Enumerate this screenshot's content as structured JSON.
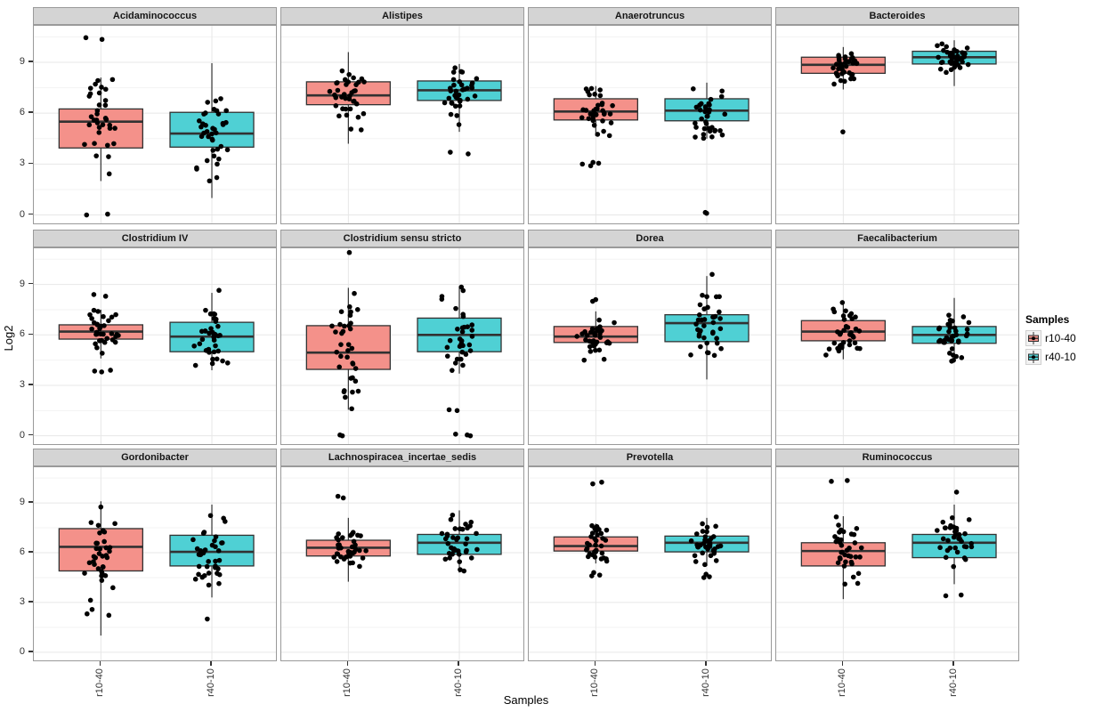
{
  "figure_title": "",
  "chart_data": {
    "type": "boxplot",
    "facet_grid": {
      "rows": 3,
      "cols": 4
    },
    "title": "",
    "xlabel": "Samples",
    "ylabel": "Log2",
    "categories": [
      "r10-40",
      "r40-10"
    ],
    "y_ticks": [
      "0",
      "3",
      "6",
      "9"
    ],
    "y_domain": [
      -0.6,
      11.15
    ],
    "grid": "on",
    "legend_position": "right",
    "points_per_group": 38,
    "colors": {
      "r10-40_fill": "#F4918A",
      "r40-10_fill": "#4FD0D4",
      "box_stroke": "#323232",
      "point": "#000000",
      "strip_bg": "#D4D4D4",
      "panel_border": "#9A9A9A",
      "grid_major": "#E7E7E7",
      "grid_minor": "#F3F3F3"
    },
    "legend": {
      "title": "Samples",
      "items": [
        {
          "label": "r10-40",
          "color": "#F4918A"
        },
        {
          "label": "r40-10",
          "color": "#4FD0D4"
        }
      ]
    },
    "facets": [
      {
        "name": "Acidaminococcus",
        "boxes": [
          {
            "group": "r10-40",
            "low": 2.0,
            "q1": 3.95,
            "median": 5.5,
            "q3": 6.25,
            "high": 8.1,
            "outliers": [
              10.35,
              10.45,
              0.0,
              0.05
            ]
          },
          {
            "group": "r40-10",
            "low": 1.0,
            "q1": 4.0,
            "median": 4.8,
            "q3": 6.05,
            "high": 8.95,
            "outliers": []
          }
        ]
      },
      {
        "name": "Alistipes",
        "boxes": [
          {
            "group": "r10-40",
            "low": 4.2,
            "q1": 6.5,
            "median": 7.05,
            "q3": 7.85,
            "high": 9.6,
            "outliers": []
          },
          {
            "group": "r40-10",
            "low": 4.9,
            "q1": 6.75,
            "median": 7.35,
            "q3": 7.9,
            "high": 8.9,
            "outliers": [
              3.6,
              3.7
            ]
          }
        ]
      },
      {
        "name": "Anaerotruncus",
        "boxes": [
          {
            "group": "r10-40",
            "low": 4.65,
            "q1": 5.6,
            "median": 6.1,
            "q3": 6.85,
            "high": 7.6,
            "outliers": [
              2.9,
              3.0,
              3.05,
              3.1
            ]
          },
          {
            "group": "r40-10",
            "low": 4.5,
            "q1": 5.55,
            "median": 6.15,
            "q3": 6.85,
            "high": 7.8,
            "outliers": [
              0.1,
              0.15
            ]
          }
        ]
      },
      {
        "name": "Bacteroides",
        "boxes": [
          {
            "group": "r10-40",
            "low": 7.4,
            "q1": 8.35,
            "median": 8.85,
            "q3": 9.3,
            "high": 9.9,
            "outliers": [
              4.9
            ]
          },
          {
            "group": "r40-10",
            "low": 7.6,
            "q1": 8.9,
            "median": 9.3,
            "q3": 9.65,
            "high": 10.3,
            "outliers": []
          }
        ]
      },
      {
        "name": "Clostridium IV",
        "boxes": [
          {
            "group": "r10-40",
            "low": 4.6,
            "q1": 5.75,
            "median": 6.2,
            "q3": 6.6,
            "high": 7.5,
            "outliers": [
              3.8,
              3.85,
              3.9,
              8.3,
              8.4
            ]
          },
          {
            "group": "r40-10",
            "low": 3.9,
            "q1": 5.0,
            "median": 5.9,
            "q3": 6.75,
            "high": 8.5,
            "outliers": [
              8.65
            ]
          }
        ]
      },
      {
        "name": "Clostridium sensu stricto",
        "boxes": [
          {
            "group": "r10-40",
            "low": 1.55,
            "q1": 3.95,
            "median": 4.95,
            "q3": 6.55,
            "high": 8.8,
            "outliers": [
              10.9,
              0.0,
              0.05
            ]
          },
          {
            "group": "r40-10",
            "low": 3.7,
            "q1": 5.0,
            "median": 6.0,
            "q3": 7.0,
            "high": 8.9,
            "outliers": [
              0.0,
              0.05,
              0.1,
              1.5,
              1.55
            ]
          }
        ]
      },
      {
        "name": "Dorea",
        "boxes": [
          {
            "group": "r10-40",
            "low": 4.95,
            "q1": 5.55,
            "median": 5.9,
            "q3": 6.5,
            "high": 7.4,
            "outliers": [
              4.5,
              4.55,
              8.0,
              8.1
            ]
          },
          {
            "group": "r40-10",
            "low": 3.35,
            "q1": 5.6,
            "median": 6.7,
            "q3": 7.2,
            "high": 9.5,
            "outliers": [
              9.6
            ]
          }
        ]
      },
      {
        "name": "Faecalibacterium",
        "boxes": [
          {
            "group": "r10-40",
            "low": 4.55,
            "q1": 5.65,
            "median": 6.2,
            "q3": 6.85,
            "high": 8.05,
            "outliers": []
          },
          {
            "group": "r40-10",
            "low": 4.4,
            "q1": 5.5,
            "median": 6.0,
            "q3": 6.5,
            "high": 8.2,
            "outliers": []
          }
        ]
      },
      {
        "name": "Gordonibacter",
        "boxes": [
          {
            "group": "r10-40",
            "low": 1.0,
            "q1": 4.9,
            "median": 6.35,
            "q3": 7.45,
            "high": 9.1,
            "outliers": []
          },
          {
            "group": "r40-10",
            "low": 3.3,
            "q1": 5.2,
            "median": 6.05,
            "q3": 7.05,
            "high": 8.9,
            "outliers": [
              2.0
            ]
          }
        ]
      },
      {
        "name": "Lachnospiracea_incertae_sedis",
        "boxes": [
          {
            "group": "r10-40",
            "low": 4.25,
            "q1": 5.8,
            "median": 6.3,
            "q3": 6.75,
            "high": 8.1,
            "outliers": [
              9.3,
              9.4
            ]
          },
          {
            "group": "r40-10",
            "low": 4.8,
            "q1": 5.9,
            "median": 6.6,
            "q3": 7.1,
            "high": 8.55,
            "outliers": []
          }
        ]
      },
      {
        "name": "Prevotella",
        "boxes": [
          {
            "group": "r10-40",
            "low": 5.35,
            "q1": 6.1,
            "median": 6.4,
            "q3": 6.95,
            "high": 7.75,
            "outliers": [
              10.15,
              10.25,
              4.6,
              4.65,
              4.8
            ]
          },
          {
            "group": "r40-10",
            "low": 5.2,
            "q1": 6.05,
            "median": 6.6,
            "q3": 7.0,
            "high": 8.1,
            "outliers": [
              4.5,
              4.55,
              4.7
            ]
          }
        ]
      },
      {
        "name": "Ruminococcus",
        "boxes": [
          {
            "group": "r10-40",
            "low": 3.2,
            "q1": 5.2,
            "median": 6.1,
            "q3": 6.6,
            "high": 8.2,
            "outliers": [
              10.3,
              10.35
            ]
          },
          {
            "group": "r40-10",
            "low": 4.1,
            "q1": 5.7,
            "median": 6.6,
            "q3": 7.1,
            "high": 8.9,
            "outliers": [
              3.4,
              3.45,
              9.65
            ]
          }
        ]
      }
    ]
  }
}
